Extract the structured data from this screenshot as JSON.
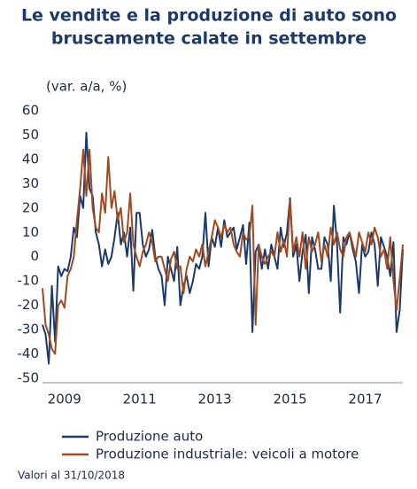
{
  "chart_data": {
    "type": "line",
    "title": [
      "Le vendite e la produzione di auto sono",
      "bruscamente calate in settembre"
    ],
    "y_axis_label": "(var. a/a, %)",
    "footnote": "Valori al 31/10/2018",
    "categories": [
      null,
      null,
      null,
      null,
      null,
      null,
      null,
      "2009",
      null,
      null,
      null,
      null,
      null,
      null,
      null,
      null,
      null,
      null,
      null,
      null,
      null,
      null,
      null,
      null,
      null,
      null,
      null,
      null,
      null,
      null,
      null,
      "2011",
      null,
      null,
      null,
      null,
      null,
      null,
      null,
      null,
      null,
      null,
      null,
      null,
      null,
      null,
      null,
      null,
      null,
      null,
      null,
      null,
      null,
      null,
      null,
      "2013",
      null,
      null,
      null,
      null,
      null,
      null,
      null,
      null,
      null,
      null,
      null,
      null,
      null,
      null,
      null,
      null,
      null,
      null,
      null,
      null,
      null,
      null,
      null,
      "2015",
      null,
      null,
      null,
      null,
      null,
      null,
      null,
      null,
      null,
      null,
      null,
      null,
      null,
      null,
      null,
      null,
      null,
      null,
      null,
      null,
      null,
      null,
      null,
      "2017",
      null,
      null,
      null,
      null,
      null,
      null,
      null,
      null,
      null,
      null,
      null,
      null
    ],
    "series": [
      {
        "name": "Produzione auto",
        "color": "#1b3a6b",
        "values": [
          -28,
          -32,
          -44,
          -12,
          -35,
          -4,
          -8,
          -5,
          -6,
          0,
          12,
          8,
          25,
          20,
          51,
          28,
          25,
          10,
          5,
          -4,
          3,
          -3,
          0,
          8,
          18,
          5,
          10,
          0,
          12,
          -14,
          18,
          18,
          5,
          0,
          3,
          11,
          0,
          -5,
          -8,
          -20,
          0,
          -5,
          -10,
          4,
          -20,
          -12,
          -8,
          -15,
          -10,
          -3,
          -5,
          0,
          18,
          -4,
          8,
          4,
          12,
          4,
          15,
          8,
          10,
          12,
          3,
          8,
          13,
          -3,
          14,
          -31,
          2,
          5,
          -5,
          3,
          -5,
          5,
          0,
          -5,
          12,
          4,
          10,
          24,
          0,
          5,
          -10,
          2,
          9,
          -15,
          8,
          3,
          -5,
          -5,
          8,
          5,
          -10,
          21,
          5,
          -23,
          8,
          5,
          10,
          3,
          -2,
          -15,
          5,
          0,
          2,
          10,
          5,
          -12,
          8,
          4,
          0,
          -8,
          6,
          -31,
          -22,
          3
        ]
      },
      {
        "name": "Produzione industriale: veicoli a motore",
        "color": "#a24a1f",
        "values": [
          -13,
          -28,
          -32,
          -38,
          -40,
          -20,
          -18,
          -21,
          -8,
          -5,
          0,
          15,
          28,
          44,
          25,
          44,
          20,
          12,
          10,
          26,
          18,
          41,
          20,
          27,
          15,
          20,
          6,
          10,
          26,
          5,
          0,
          -4,
          2,
          5,
          10,
          6,
          -2,
          0,
          0,
          -5,
          -10,
          -1,
          2,
          -5,
          -4,
          -15,
          -5,
          0,
          -2,
          3,
          0,
          5,
          -4,
          2,
          8,
          15,
          12,
          8,
          13,
          10,
          12,
          5,
          2,
          0,
          10,
          7,
          8,
          21,
          -28,
          5,
          0,
          -3,
          0,
          2,
          0,
          10,
          2,
          7,
          0,
          23,
          2,
          8,
          0,
          10,
          -5,
          8,
          2,
          5,
          10,
          -2,
          5,
          0,
          12,
          5,
          10,
          3,
          0,
          8,
          10,
          5,
          0,
          10,
          6,
          2,
          10,
          5,
          12,
          8,
          0,
          3,
          -5,
          8,
          -10,
          -22,
          -9,
          5
        ]
      }
    ],
    "ylim": [
      -50,
      60
    ],
    "yticks": [
      -50,
      -40,
      -30,
      -20,
      -10,
      0,
      10,
      20,
      30,
      40,
      50,
      60
    ],
    "grid": false,
    "legend": "bottom"
  }
}
